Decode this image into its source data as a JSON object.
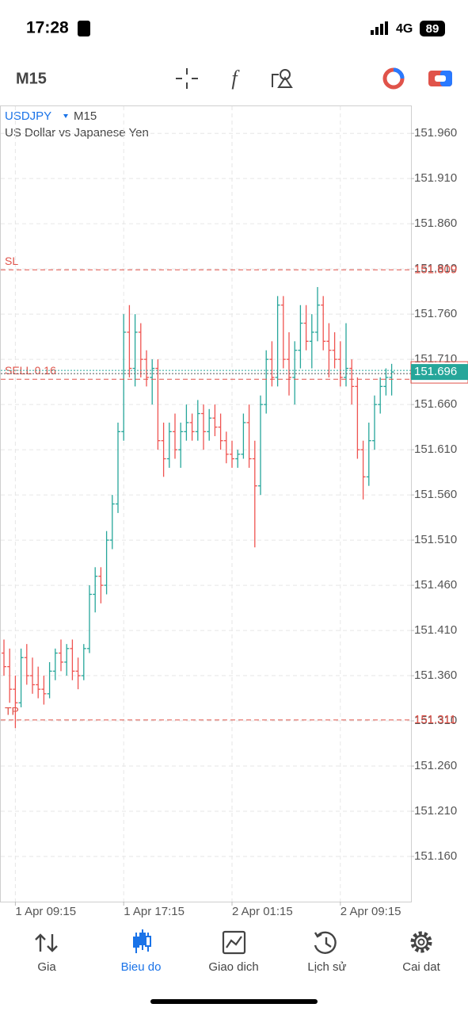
{
  "status_bar": {
    "time": "17:28",
    "network": "4G",
    "battery": "89"
  },
  "toolbar": {
    "timeframe": "M15"
  },
  "chart_data": {
    "type": "ohlc",
    "symbol": "USDJPY",
    "timeframe": "M15",
    "subtitle": "US Dollar vs Japanese Yen",
    "categories": [
      null,
      null,
      "1 Apr 09:15",
      null,
      null,
      null,
      null,
      null,
      null,
      null,
      null,
      null,
      null,
      null,
      null,
      null,
      null,
      null,
      null,
      null,
      null,
      "1 Apr 17:15",
      null,
      null,
      null,
      null,
      null,
      null,
      null,
      null,
      null,
      null,
      null,
      null,
      null,
      null,
      null,
      null,
      null,
      null,
      "2 Apr 01:15",
      null,
      null,
      null,
      null,
      null,
      null,
      null,
      null,
      null,
      null,
      null,
      null,
      null,
      null,
      null,
      null,
      null,
      null,
      "2 Apr 09:15",
      null,
      null,
      null,
      null,
      null,
      null,
      null,
      null,
      null
    ],
    "open": [
      151.385,
      151.37,
      151.345,
      151.33,
      151.38,
      151.36,
      151.35,
      151.345,
      151.34,
      151.365,
      151.385,
      151.375,
      151.39,
      151.365,
      151.36,
      151.39,
      151.45,
      151.47,
      151.46,
      151.51,
      151.55,
      151.63,
      151.74,
      151.7,
      151.74,
      151.71,
      151.69,
      151.7,
      151.62,
      151.6,
      151.63,
      151.61,
      151.63,
      151.64,
      151.63,
      151.65,
      151.63,
      151.645,
      151.635,
      151.62,
      151.605,
      151.6,
      151.605,
      151.64,
      151.6,
      151.57,
      151.66,
      151.71,
      151.69,
      151.77,
      151.71,
      151.69,
      151.72,
      151.75,
      151.73,
      151.74,
      151.77,
      151.73,
      151.72,
      151.71,
      151.69,
      151.7,
      151.68,
      151.61,
      151.58,
      151.62,
      151.66,
      151.68,
      151.69
    ],
    "high": [
      151.4,
      151.39,
      151.36,
      151.39,
      151.395,
      151.38,
      151.37,
      151.36,
      151.375,
      151.39,
      151.4,
      151.395,
      151.4,
      151.38,
      151.395,
      151.46,
      151.48,
      151.48,
      151.52,
      151.56,
      151.64,
      151.76,
      151.77,
      151.76,
      151.75,
      151.72,
      151.71,
      151.71,
      151.64,
      151.64,
      151.65,
      151.64,
      151.66,
      151.65,
      151.665,
      151.66,
      151.655,
      151.66,
      151.65,
      151.63,
      151.62,
      151.61,
      151.65,
      151.66,
      151.62,
      151.67,
      151.72,
      151.73,
      151.78,
      151.78,
      151.74,
      151.73,
      151.77,
      151.77,
      151.76,
      151.79,
      151.78,
      151.75,
      151.74,
      151.73,
      151.75,
      151.71,
      151.69,
      151.62,
      151.64,
      151.67,
      151.69,
      151.7,
      151.705
    ],
    "low": [
      151.36,
      151.33,
      151.302,
      151.325,
      151.35,
      151.34,
      151.335,
      151.328,
      151.335,
      151.355,
      151.365,
      151.36,
      151.355,
      151.345,
      151.355,
      151.385,
      151.43,
      151.44,
      151.45,
      151.5,
      151.54,
      151.62,
      151.69,
      151.68,
      151.69,
      151.68,
      151.66,
      151.61,
      151.58,
      151.59,
      151.6,
      151.59,
      151.62,
      151.62,
      151.62,
      151.61,
      151.62,
      151.625,
      151.61,
      151.595,
      151.59,
      151.59,
      151.6,
      151.59,
      151.502,
      151.56,
      151.65,
      151.68,
      151.68,
      151.7,
      151.67,
      151.66,
      151.7,
      151.72,
      151.7,
      151.73,
      151.72,
      151.69,
      151.7,
      151.68,
      151.68,
      151.66,
      151.6,
      151.555,
      151.57,
      151.61,
      151.65,
      151.67,
      151.67
    ],
    "close": [
      151.37,
      151.345,
      151.33,
      151.38,
      151.36,
      151.35,
      151.345,
      151.34,
      151.365,
      151.385,
      151.375,
      151.39,
      151.365,
      151.36,
      151.39,
      151.45,
      151.47,
      151.46,
      151.51,
      151.55,
      151.63,
      151.74,
      151.7,
      151.74,
      151.71,
      151.69,
      151.7,
      151.62,
      151.6,
      151.63,
      151.61,
      151.63,
      151.64,
      151.63,
      151.65,
      151.63,
      151.645,
      151.635,
      151.62,
      151.605,
      151.6,
      151.605,
      151.64,
      151.6,
      151.57,
      151.66,
      151.71,
      151.69,
      151.77,
      151.71,
      151.69,
      151.72,
      151.75,
      151.73,
      151.74,
      151.77,
      151.73,
      151.72,
      151.71,
      151.69,
      151.7,
      151.68,
      151.61,
      151.58,
      151.62,
      151.66,
      151.68,
      151.69,
      151.696
    ],
    "up_color": "#26a69a",
    "down_color": "#ef5350",
    "ylim": [
      151.11,
      151.99
    ],
    "yticks": [
      {
        "value": 151.16,
        "label": "151.160"
      },
      {
        "value": 151.21,
        "label": "151.210"
      },
      {
        "value": 151.26,
        "label": "151.260"
      },
      {
        "value": 151.31,
        "label": "151.310"
      },
      {
        "value": 151.36,
        "label": "151.360"
      },
      {
        "value": 151.41,
        "label": "151.410"
      },
      {
        "value": 151.46,
        "label": "151.460"
      },
      {
        "value": 151.51,
        "label": "151.510"
      },
      {
        "value": 151.56,
        "label": "151.560"
      },
      {
        "value": 151.61,
        "label": "151.610"
      },
      {
        "value": 151.66,
        "label": "151.660"
      },
      {
        "value": 151.71,
        "label": "151.710"
      },
      {
        "value": 151.76,
        "label": "151.760"
      },
      {
        "value": 151.81,
        "label": "151.810"
      },
      {
        "value": 151.86,
        "label": "151.860"
      },
      {
        "value": 151.91,
        "label": "151.910"
      },
      {
        "value": 151.96,
        "label": "151.960"
      }
    ],
    "grid": true,
    "levels": [
      {
        "name": "SL",
        "value": 151.809,
        "color": "#e0534a"
      },
      {
        "name": "TP",
        "value": 151.311,
        "color": "#e0534a"
      },
      {
        "name": "SELL 0.16",
        "value": 151.688,
        "color": "#e0534a"
      }
    ],
    "current_price": {
      "value": 151.696,
      "color": "#26a69a"
    }
  },
  "nav": {
    "items": [
      "Gia",
      "Bieu do",
      "Giao dich",
      "Lịch sử",
      "Cai dat"
    ],
    "active": 1
  }
}
